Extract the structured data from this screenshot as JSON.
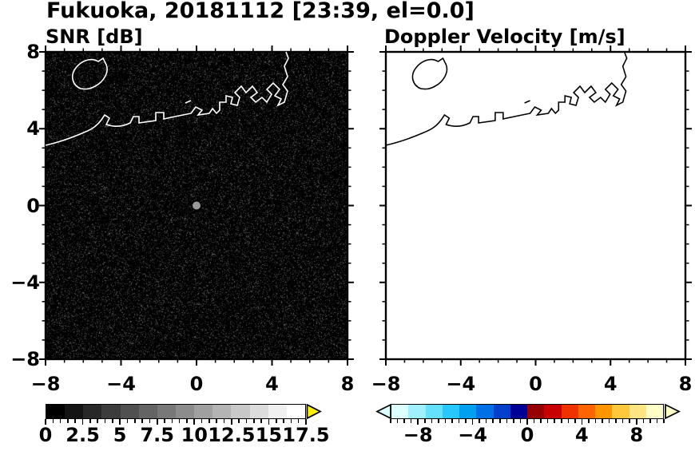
{
  "title": "Fukuoka, 20181112 [23:39, el=0.0]",
  "chart_data": [
    {
      "type": "heatmap",
      "panel": "left",
      "title": "SNR [dB]",
      "xlim": [
        -8,
        8
      ],
      "ylim": [
        -8,
        8
      ],
      "xtick_labels": [
        "−8",
        "−4",
        "0",
        "4",
        "8"
      ],
      "ytick_labels": [
        "8",
        "4",
        "0",
        "−4",
        "−8"
      ],
      "major_tick_step": 4,
      "minor_tick_step": 1,
      "grid": false,
      "background_color": "#000000",
      "coastline_color": "#ffffff",
      "field_summary": "Near-uniform low-SNR noise speckle (rendered black, ~0 dB) across the whole 16x16 domain; no precipitation echo; gray dot marks the radar origin at (0,0); Hakata Bay coastline overlaid in white.",
      "origin_marker": {
        "x": 0,
        "y": 0,
        "color": "#9c9c9c"
      },
      "colorbar": {
        "range": [
          0,
          17.5
        ],
        "tick_labels": [
          "0",
          "2.5",
          "5",
          "7.5",
          "10",
          "12.5",
          "15",
          "17.5"
        ],
        "tick_values": [
          0,
          2.5,
          5,
          7.5,
          10,
          12.5,
          15,
          17.5
        ],
        "band_colors": [
          "#000000",
          "#141414",
          "#282828",
          "#3c3c3c",
          "#505050",
          "#646464",
          "#787878",
          "#8c8c8c",
          "#a0a0a0",
          "#b4b4b4",
          "#c8c8c8",
          "#dcdcdc",
          "#f0f0f0",
          "#ffffff"
        ],
        "over_arrow_color": "#ffef00"
      }
    },
    {
      "type": "heatmap",
      "panel": "right",
      "title": "Doppler Velocity [m/s]",
      "xlim": [
        -8,
        8
      ],
      "ylim": [
        -8,
        8
      ],
      "xtick_labels": [
        "−8",
        "−4",
        "0",
        "4",
        "8"
      ],
      "ytick_labels": [],
      "major_tick_step": 4,
      "minor_tick_step": 1,
      "grid": false,
      "background_color": "#ffffff",
      "coastline_color": "#000000",
      "field_summary": "No Doppler velocity data plotted (blank white field); Hakata Bay coastline overlaid in black.",
      "colorbar": {
        "range": [
          -10,
          10
        ],
        "tick_labels": [
          "−8",
          "−4",
          "0",
          "4",
          "8"
        ],
        "tick_values": [
          -8,
          -4,
          0,
          4,
          8
        ],
        "band_colors": [
          "#dcffff",
          "#a0f0ff",
          "#64e1ff",
          "#28c8ff",
          "#00a0f0",
          "#0070e6",
          "#0040cd",
          "#000096",
          "#960000",
          "#c80000",
          "#f03200",
          "#ff6400",
          "#ff9600",
          "#ffc83c",
          "#ffe682",
          "#ffffc8"
        ],
        "under_arrow_color": "#dcffff",
        "over_arrow_color": "#ffffc8"
      }
    }
  ]
}
